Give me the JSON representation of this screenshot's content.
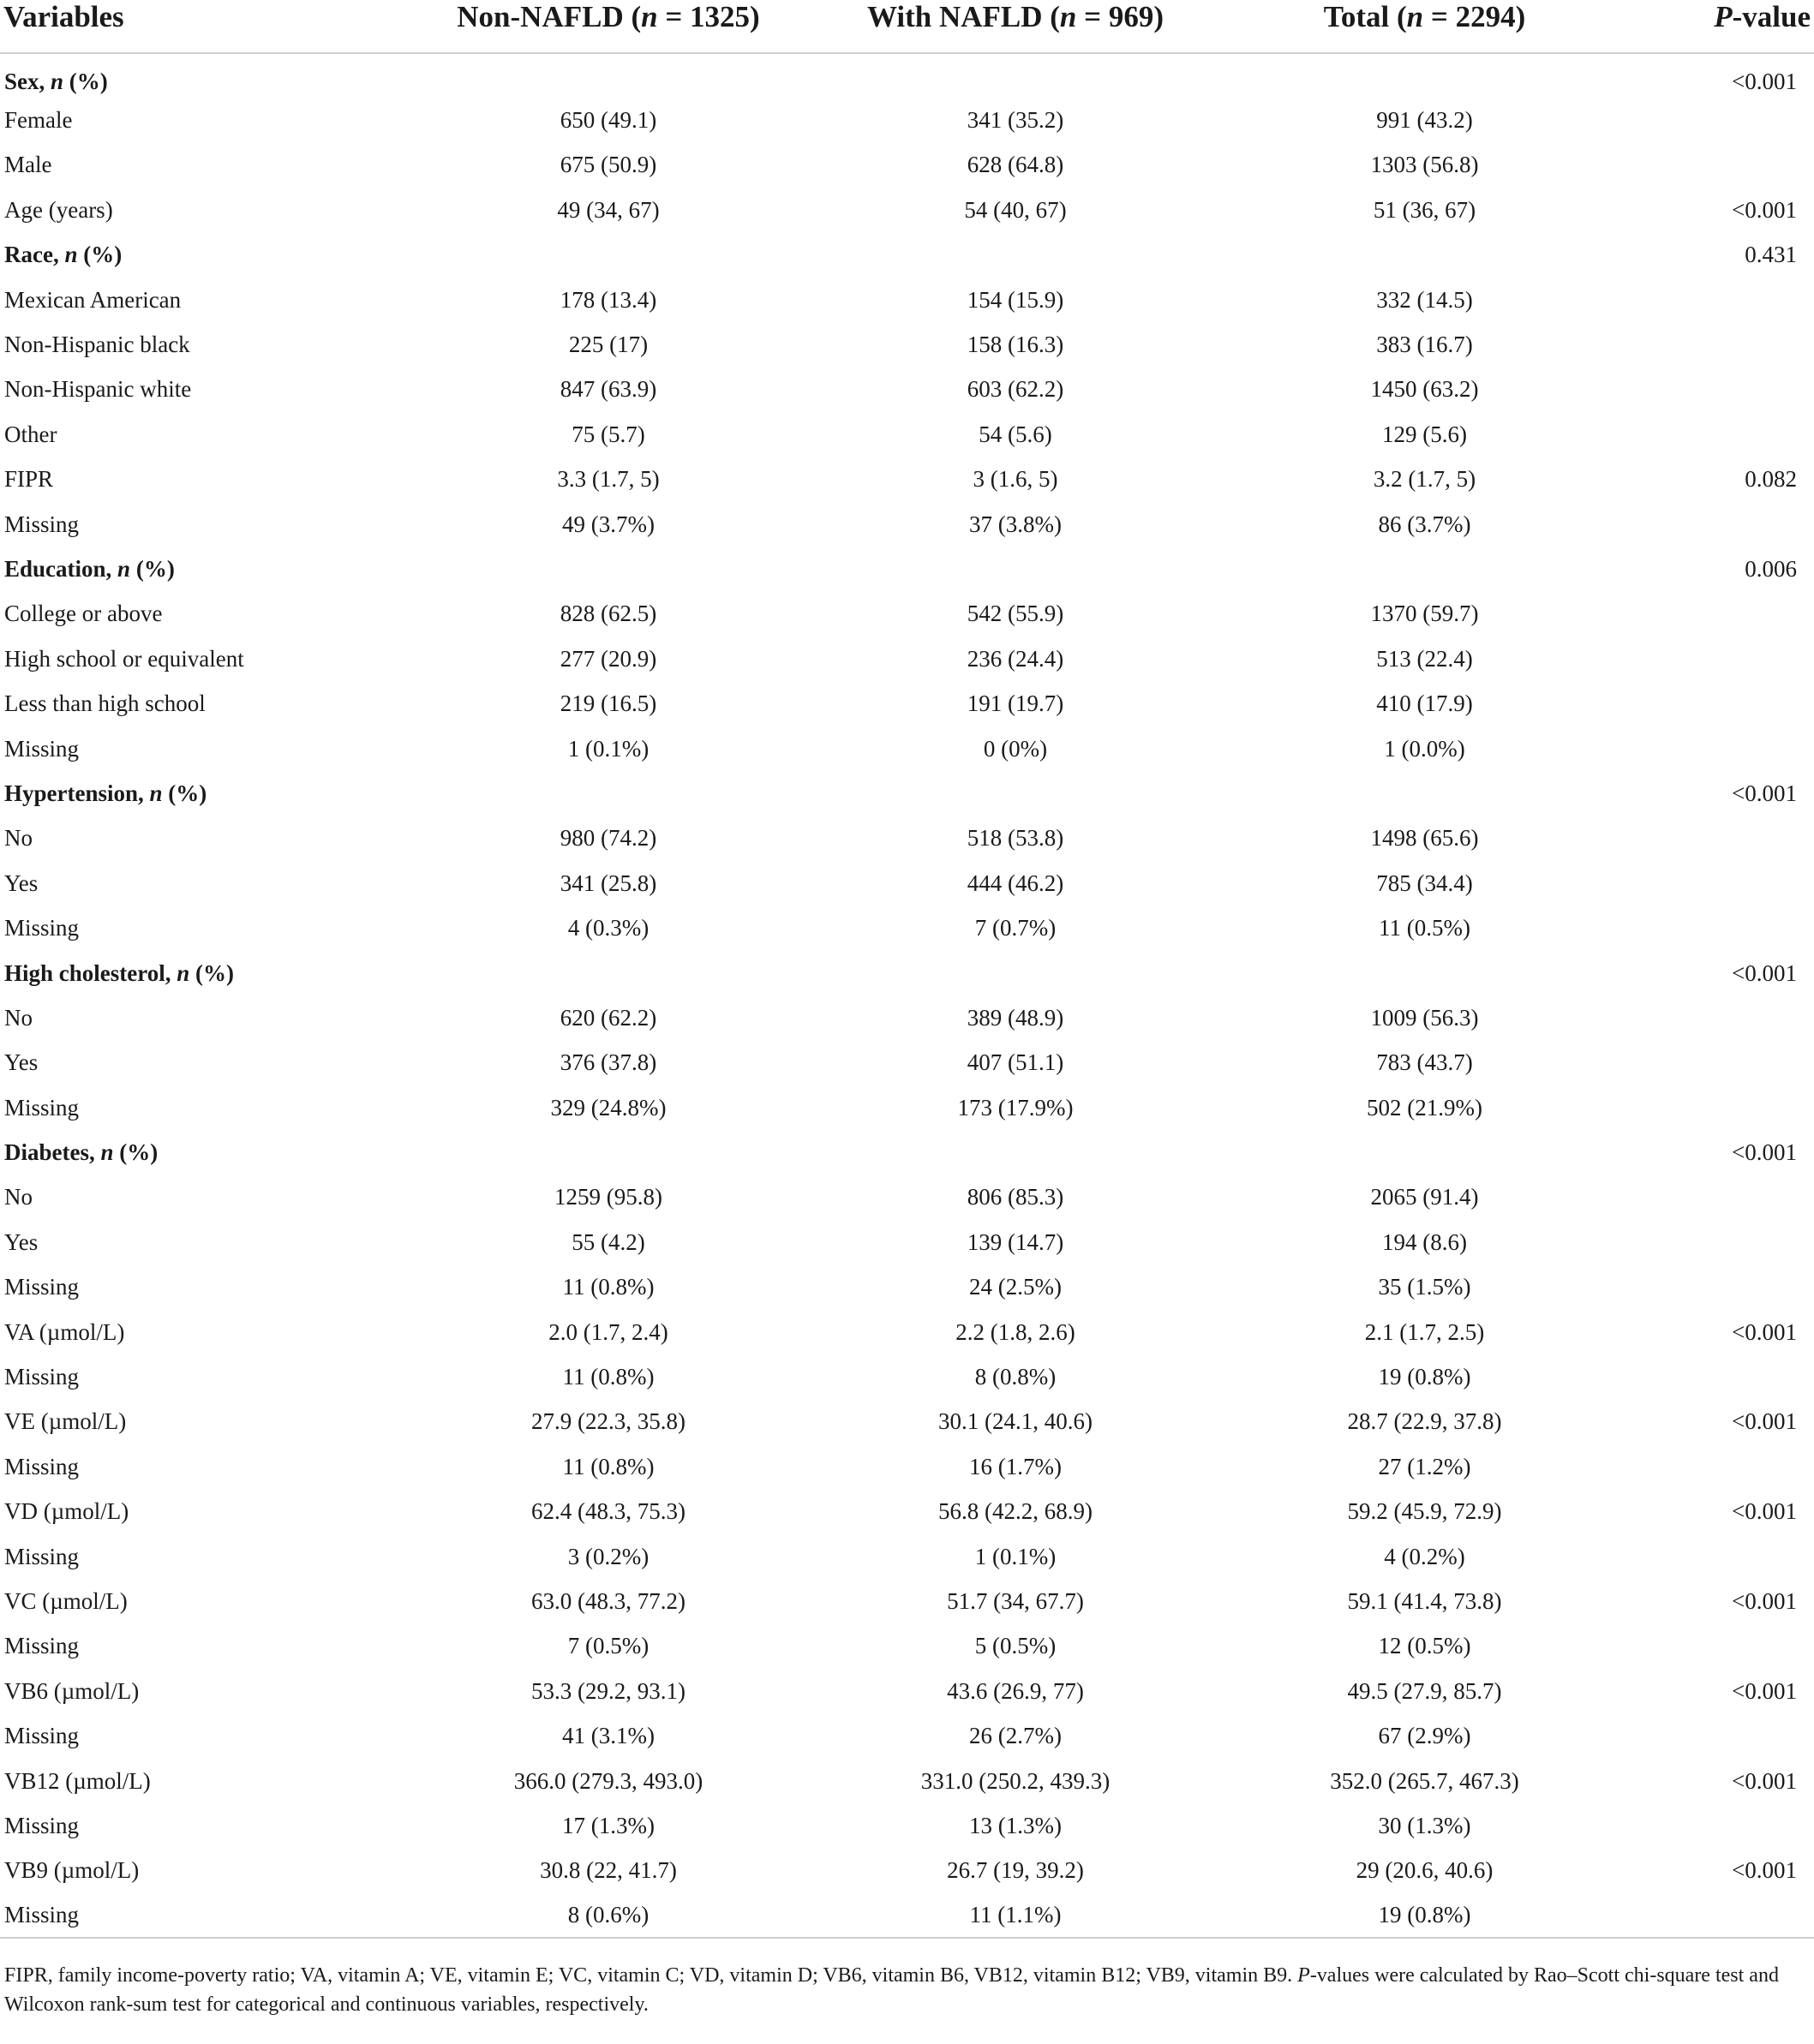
{
  "headers": {
    "variables": "Variables",
    "non_nafld": {
      "pre": "Non-NAFLD (",
      "n": "n",
      "post": " = 1325)"
    },
    "with_nafld": {
      "pre": "With NAFLD (",
      "n": "n",
      "post": " = 969)"
    },
    "total": {
      "pre": "Total (",
      "n": "n",
      "post": " = 2294)"
    },
    "pvalue": {
      "p": "P",
      "post": "-value"
    }
  },
  "rows": [
    {
      "label": "Sex",
      "suffix": ", ",
      "n": "n",
      "pct": " (%)",
      "section": true,
      "a": "",
      "b": "",
      "c": "",
      "p": "<0.001"
    },
    {
      "label": "Female",
      "a": "650 (49.1)",
      "b": "341 (35.2)",
      "c": "991 (43.2)",
      "p": ""
    },
    {
      "label": "Male",
      "a": "675 (50.9)",
      "b": "628 (64.8)",
      "c": "1303 (56.8)",
      "p": ""
    },
    {
      "label": "Age (years)",
      "a": "49 (34, 67)",
      "b": "54 (40, 67)",
      "c": "51 (36, 67)",
      "p": "<0.001"
    },
    {
      "label": "Race",
      "suffix": ", ",
      "n": "n",
      "pct": " (%)",
      "section": true,
      "a": "",
      "b": "",
      "c": "",
      "p": "0.431"
    },
    {
      "label": "Mexican American",
      "a": "178 (13.4)",
      "b": "154 (15.9)",
      "c": "332 (14.5)",
      "p": ""
    },
    {
      "label": "Non-Hispanic black",
      "a": "225 (17)",
      "b": "158 (16.3)",
      "c": "383 (16.7)",
      "p": ""
    },
    {
      "label": "Non-Hispanic white",
      "a": "847 (63.9)",
      "b": "603 (62.2)",
      "c": "1450 (63.2)",
      "p": ""
    },
    {
      "label": "Other",
      "a": "75 (5.7)",
      "b": "54 (5.6)",
      "c": "129 (5.6)",
      "p": ""
    },
    {
      "label": "FIPR",
      "a": "3.3 (1.7, 5)",
      "b": "3 (1.6, 5)",
      "c": "3.2 (1.7, 5)",
      "p": "0.082"
    },
    {
      "label": "Missing",
      "a": "49 (3.7%)",
      "b": "37 (3.8%)",
      "c": "86 (3.7%)",
      "p": ""
    },
    {
      "label": "Education",
      "suffix": ", ",
      "n": "n",
      "pct": " (%)",
      "section": true,
      "a": "",
      "b": "",
      "c": "",
      "p": "0.006"
    },
    {
      "label": "College or above",
      "a": "828 (62.5)",
      "b": "542 (55.9)",
      "c": "1370 (59.7)",
      "p": ""
    },
    {
      "label": "High school or equivalent",
      "a": "277 (20.9)",
      "b": "236 (24.4)",
      "c": "513 (22.4)",
      "p": ""
    },
    {
      "label": "Less than high school",
      "a": "219 (16.5)",
      "b": "191 (19.7)",
      "c": "410 (17.9)",
      "p": ""
    },
    {
      "label": "Missing",
      "a": "1 (0.1%)",
      "b": "0 (0%)",
      "c": "1 (0.0%)",
      "p": ""
    },
    {
      "label": "Hypertension",
      "suffix": ", ",
      "n": "n",
      "pct": " (%)",
      "section": true,
      "a": "",
      "b": "",
      "c": "",
      "p": "<0.001"
    },
    {
      "label": "No",
      "a": "980 (74.2)",
      "b": "518 (53.8)",
      "c": "1498 (65.6)",
      "p": ""
    },
    {
      "label": "Yes",
      "a": "341 (25.8)",
      "b": "444 (46.2)",
      "c": "785 (34.4)",
      "p": ""
    },
    {
      "label": "Missing",
      "a": "4 (0.3%)",
      "b": "7 (0.7%)",
      "c": "11 (0.5%)",
      "p": ""
    },
    {
      "label": "High cholesterol",
      "suffix": ", ",
      "n": "n",
      "pct": " (%)",
      "section": true,
      "a": "",
      "b": "",
      "c": "",
      "p": "<0.001"
    },
    {
      "label": "No",
      "a": "620 (62.2)",
      "b": "389 (48.9)",
      "c": "1009 (56.3)",
      "p": ""
    },
    {
      "label": "Yes",
      "a": "376 (37.8)",
      "b": "407 (51.1)",
      "c": "783 (43.7)",
      "p": ""
    },
    {
      "label": "Missing",
      "a": "329 (24.8%)",
      "b": "173 (17.9%)",
      "c": "502 (21.9%)",
      "p": ""
    },
    {
      "label": "Diabetes",
      "suffix": ", ",
      "n": "n",
      "pct": " (%)",
      "section": true,
      "a": "",
      "b": "",
      "c": "",
      "p": "<0.001"
    },
    {
      "label": "No",
      "a": "1259 (95.8)",
      "b": "806 (85.3)",
      "c": "2065 (91.4)",
      "p": ""
    },
    {
      "label": "Yes",
      "a": "55 (4.2)",
      "b": "139 (14.7)",
      "c": "194 (8.6)",
      "p": ""
    },
    {
      "label": "Missing",
      "a": "11 (0.8%)",
      "b": "24 (2.5%)",
      "c": "35 (1.5%)",
      "p": ""
    },
    {
      "label": "VA (µmol/L)",
      "a": "2.0 (1.7, 2.4)",
      "b": "2.2 (1.8, 2.6)",
      "c": "2.1 (1.7, 2.5)",
      "p": "<0.001"
    },
    {
      "label": "Missing",
      "a": "11 (0.8%)",
      "b": "8 (0.8%)",
      "c": "19 (0.8%)",
      "p": ""
    },
    {
      "label": "VE (µmol/L)",
      "a": "27.9 (22.3, 35.8)",
      "b": "30.1 (24.1, 40.6)",
      "c": "28.7 (22.9, 37.8)",
      "p": "<0.001"
    },
    {
      "label": "Missing",
      "a": "11 (0.8%)",
      "b": "16 (1.7%)",
      "c": "27 (1.2%)",
      "p": ""
    },
    {
      "label": "VD (µmol/L)",
      "a": "62.4 (48.3, 75.3)",
      "b": "56.8 (42.2, 68.9)",
      "c": "59.2 (45.9, 72.9)",
      "p": "<0.001"
    },
    {
      "label": "Missing",
      "a": "3 (0.2%)",
      "b": "1 (0.1%)",
      "c": "4 (0.2%)",
      "p": ""
    },
    {
      "label": "VC (µmol/L)",
      "a": "63.0 (48.3, 77.2)",
      "b": "51.7 (34, 67.7)",
      "c": "59.1 (41.4, 73.8)",
      "p": "<0.001"
    },
    {
      "label": "Missing",
      "a": "7 (0.5%)",
      "b": "5 (0.5%)",
      "c": "12 (0.5%)",
      "p": ""
    },
    {
      "label": "VB6 (µmol/L)",
      "a": "53.3 (29.2, 93.1)",
      "b": "43.6 (26.9, 77)",
      "c": "49.5 (27.9, 85.7)",
      "p": "<0.001"
    },
    {
      "label": "Missing",
      "a": "41 (3.1%)",
      "b": "26 (2.7%)",
      "c": "67 (2.9%)",
      "p": ""
    },
    {
      "label": "VB12 (µmol/L)",
      "a": "366.0 (279.3, 493.0)",
      "b": "331.0 (250.2, 439.3)",
      "c": "352.0 (265.7, 467.3)",
      "p": "<0.001"
    },
    {
      "label": "Missing",
      "a": "17 (1.3%)",
      "b": "13 (1.3%)",
      "c": "30 (1.3%)",
      "p": ""
    },
    {
      "label": "VB9 (µmol/L)",
      "a": "30.8 (22, 41.7)",
      "b": "26.7 (19, 39.2)",
      "c": "29 (20.6, 40.6)",
      "p": "<0.001"
    },
    {
      "label": "Missing",
      "a": "8 (0.6%)",
      "b": "11 (1.1%)",
      "c": "19 (0.8%)",
      "p": ""
    }
  ],
  "footnote": {
    "text_before": "FIPR, family income-poverty ratio; VA, vitamin A; VE, vitamin E; VC, vitamin C; VD, vitamin D; VB6, vitamin B6, VB12, vitamin B12; VB9, vitamin B9. ",
    "p": "P",
    "text_after": "-values were calculated by Rao–Scott chi-square test and Wilcoxon rank-sum test for categorical and continuous variables, respectively."
  }
}
